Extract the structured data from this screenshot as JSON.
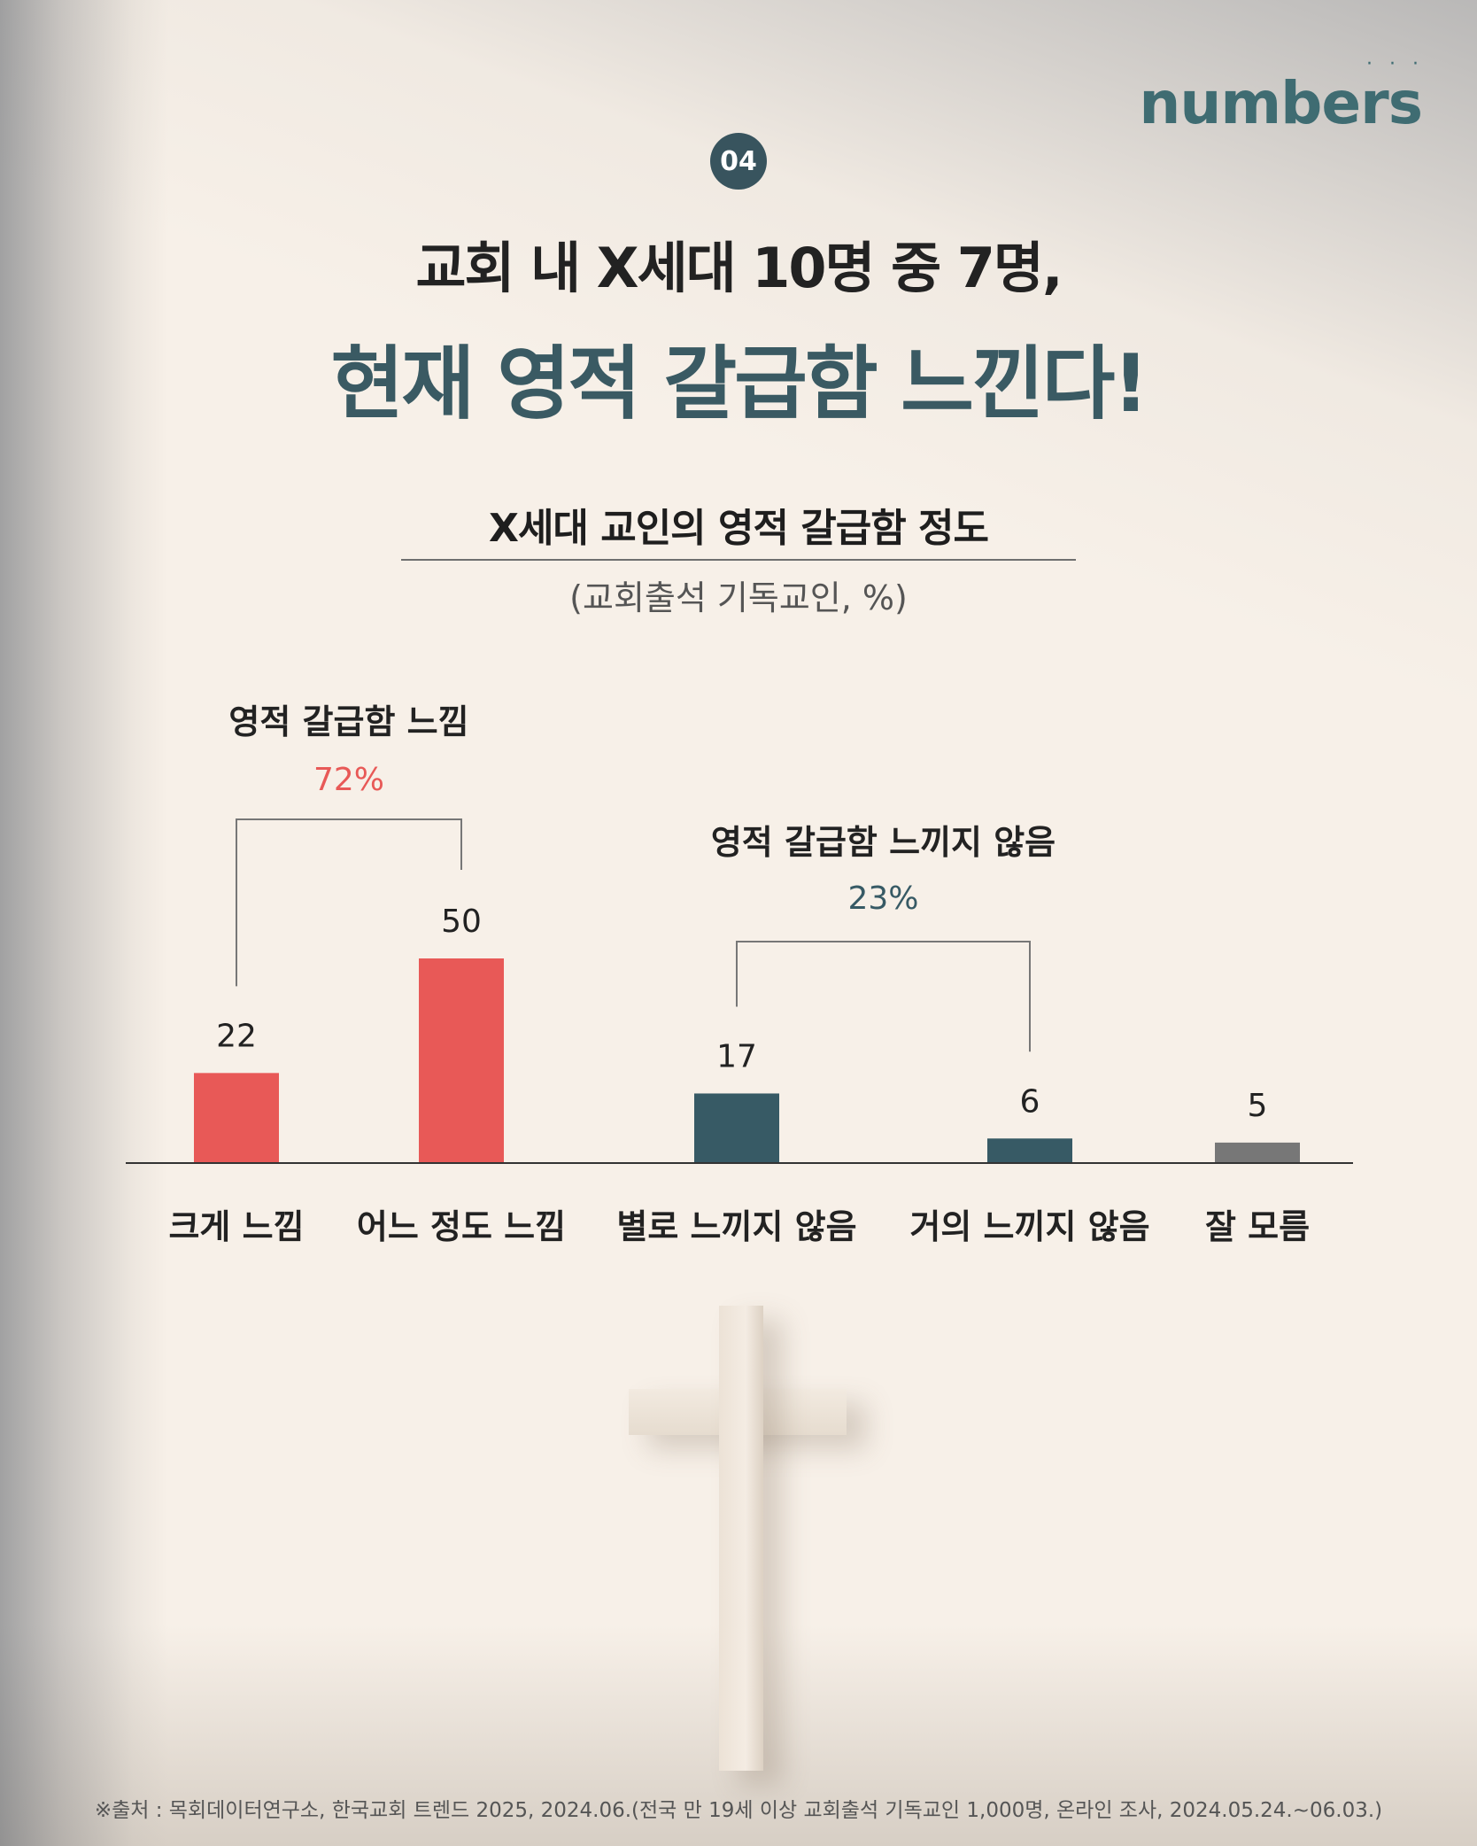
{
  "brand": {
    "logo_text": "numbers"
  },
  "badge": "04",
  "headline": {
    "line1": "교회 내 X세대 10명 중 7명,",
    "line2": "현재 영적 갈급함 느낀다!"
  },
  "colors": {
    "feel": "#e85957",
    "notfeel": "#375a65",
    "unknown": "#777777"
  },
  "chart_data": {
    "type": "bar",
    "title": "X세대 교인의 영적 갈급함 정도",
    "subtitle": "(교회출석 기독교인, %)",
    "categories": [
      "크게 느낌",
      "어느 정도 느낌",
      "별로 느끼지 않음",
      "거의 느끼지 않음",
      "잘 모름"
    ],
    "values": [
      22,
      50,
      17,
      6,
      5
    ],
    "bar_colors": [
      "#e85957",
      "#e85957",
      "#375a65",
      "#375a65",
      "#777777"
    ],
    "ylim": [
      0,
      60
    ],
    "groups": [
      {
        "label": "영적 갈급함 느낌",
        "value": "72%",
        "members": [
          0,
          1
        ],
        "color": "#e85957"
      },
      {
        "label": "영적 갈급함 느끼지 않음",
        "value": "23%",
        "members": [
          2,
          3
        ],
        "color": "#375a65"
      }
    ]
  },
  "footnote": "※출처 : 목회데이터연구소, 한국교회 트렌드 2025, 2024.06.(전국 만 19세 이상 교회출석 기독교인 1,000명, 온라인 조사, 2024.05.24.~06.03.)"
}
